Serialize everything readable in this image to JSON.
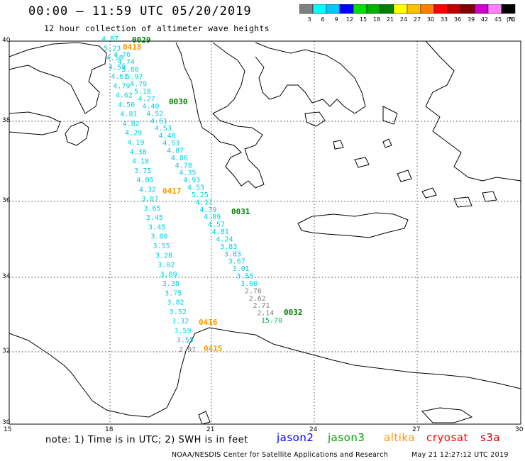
{
  "header": {
    "title": "00:00 – 11:59 UTC 05/20/2019",
    "subtitle": "12 hour collection of altimeter wave heights"
  },
  "colorbar": {
    "unit": "(ft)",
    "ticks": [
      "3",
      "6",
      "9",
      "12",
      "15",
      "18",
      "21",
      "24",
      "27",
      "30",
      "33",
      "36",
      "39",
      "42",
      "45",
      "70"
    ],
    "colors": [
      "#808080",
      "#00ffff",
      "#00c8ff",
      "#0000ff",
      "#00e000",
      "#00b000",
      "#008000",
      "#ffff00",
      "#ffc000",
      "#ff8000",
      "#ff0000",
      "#c00000",
      "#800000",
      "#d000d0",
      "#ff80ff",
      "#000000"
    ]
  },
  "axes": {
    "lat_labels": [
      "40",
      "38",
      "36",
      "34",
      "32",
      "30"
    ],
    "lon_labels": [
      "15",
      "18",
      "21",
      "24",
      "27",
      "30"
    ]
  },
  "passes": [
    {
      "label": "0029",
      "color": "#008000"
    },
    {
      "label": "0418",
      "color": "#ff9900"
    },
    {
      "label": "0030",
      "color": "#008000"
    },
    {
      "label": "0417",
      "color": "#ff9900"
    },
    {
      "label": "0031",
      "color": "#008000"
    },
    {
      "label": "0032",
      "color": "#008000"
    },
    {
      "label": "0416",
      "color": "#ff9900"
    },
    {
      "label": "0415",
      "color": "#ff9900"
    }
  ],
  "track_a": [
    "4.87",
    "5.23",
    "4.58",
    "4.59",
    "4.61",
    "4.79",
    "4.62",
    "4.50",
    "4.81",
    "4.82",
    "4.29",
    "4.19",
    "4.38",
    "4.18",
    "3.75",
    "4.05",
    "4.32",
    "3.87",
    "3.65",
    "3.45",
    "3.45",
    "3.80",
    "3.55",
    "3.28",
    "3.02",
    "3.09",
    "3.38",
    "3.75",
    "3.82",
    "3.52",
    "3.32",
    "3.59",
    "3.55",
    "2.97"
  ],
  "track_b": [
    "4.76",
    "4.74",
    "5.80",
    "5.97",
    "4.79",
    "5.18",
    "4.27",
    "4.40",
    "4.52",
    "4.61",
    "4.53",
    "4.48",
    "4.53",
    "4.87",
    "4.86",
    "4.78",
    "4.35",
    "4.93",
    "4.53",
    "5.25",
    "4.17",
    "4.39",
    "4.89",
    "4.57",
    "4.81",
    "4.24",
    "3.83",
    "3.83",
    "3.67",
    "3.01",
    "3.55",
    "3.00",
    "2.76",
    "2.62",
    "2.71",
    "2.14",
    "15.70"
  ],
  "note": "note: 1) Time is in UTC; 2) SWH is in feet",
  "satellites": [
    {
      "name": "jason2",
      "color": "#0000ff"
    },
    {
      "name": "jason3",
      "color": "#00a000"
    },
    {
      "name": "altika",
      "color": "#ff9900"
    },
    {
      "name": "cryosat",
      "color": "#ff0000"
    },
    {
      "name": "s3a",
      "color": "#c00000"
    }
  ],
  "credit": "NOAA/NESDIS Center for Satellite Applications and Research",
  "timestamp": "May 21 12:27:12 UTC 2019"
}
